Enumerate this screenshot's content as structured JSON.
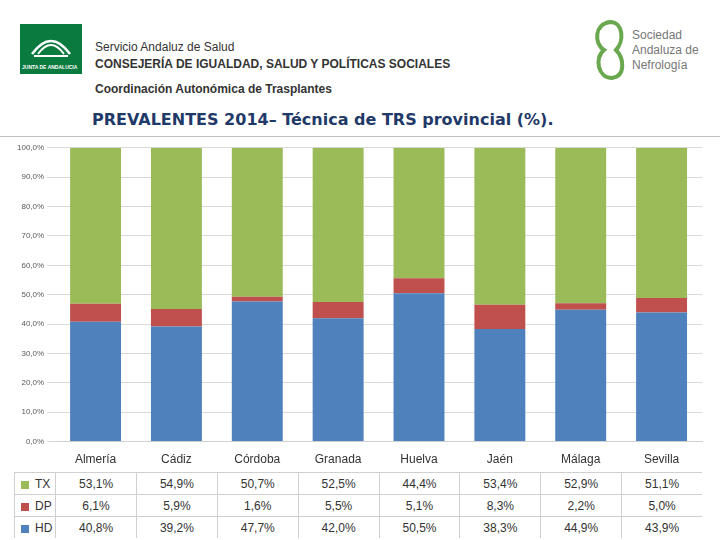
{
  "header": {
    "logo_left": "JUNTA DE ANDALUCIA",
    "org_lines": [
      "Servicio Andaluz de Salud",
      "CONSEJERÍA DE IGUALDAD, SALUD Y POLÍTICAS SOCIALES",
      "Coordinación Autonómica de Trasplantes"
    ],
    "logo_right": [
      "Sociedad",
      "Andaluza de",
      "Nefrología"
    ]
  },
  "chart_data": {
    "type": "bar",
    "stacked": true,
    "grid": true,
    "title": "PREVALENTES 2014– Técnica de TRS provincial (%).",
    "categories": [
      "Almería",
      "Cádiz",
      "Córdoba",
      "Granada",
      "Huelva",
      "Jaén",
      "Málaga",
      "Sevilla"
    ],
    "series": [
      {
        "name": "TX",
        "color": "#9bbb59",
        "values": [
          53.1,
          54.9,
          50.7,
          52.5,
          44.4,
          53.4,
          52.9,
          51.1
        ],
        "value_labels": [
          "53,1%",
          "54,9%",
          "50,7%",
          "52,5%",
          "44,4%",
          "53,4%",
          "52,9%",
          "51,1%"
        ]
      },
      {
        "name": "DP",
        "color": "#c0504d",
        "values": [
          6.1,
          5.9,
          1.6,
          5.5,
          5.1,
          8.3,
          2.2,
          5.0
        ],
        "value_labels": [
          "6,1%",
          "5,9%",
          "1,6%",
          "5,5%",
          "5,1%",
          "8,3%",
          "2,2%",
          "5,0%"
        ]
      },
      {
        "name": "HD",
        "color": "#4f81bd",
        "values": [
          40.8,
          39.2,
          47.7,
          42.0,
          50.5,
          38.3,
          44.9,
          43.9
        ],
        "value_labels": [
          "40,8%",
          "39,2%",
          "47,7%",
          "42,0%",
          "50,5%",
          "38,3%",
          "44,9%",
          "43,9%"
        ]
      }
    ],
    "ylim": [
      0,
      100
    ],
    "yticks": [
      {
        "value": 0,
        "label": "0,0%"
      },
      {
        "value": 10,
        "label": "10,0%"
      },
      {
        "value": 20,
        "label": "20,0%"
      },
      {
        "value": 30,
        "label": "30,0%"
      },
      {
        "value": 40,
        "label": "40,0%"
      },
      {
        "value": 50,
        "label": "50,0%"
      },
      {
        "value": 60,
        "label": "60,0%"
      },
      {
        "value": 70,
        "label": "70,0%"
      },
      {
        "value": 80,
        "label": "80,0%"
      },
      {
        "value": 90,
        "label": "90,0%"
      },
      {
        "value": 100,
        "label": "100,0%"
      }
    ]
  }
}
